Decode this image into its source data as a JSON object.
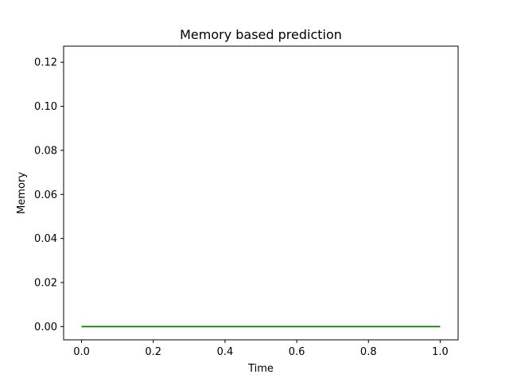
{
  "chart_data": {
    "type": "line",
    "title": "Memory based prediction",
    "xlabel": "Time",
    "ylabel": "Memory",
    "xlim": [
      -0.05,
      1.05
    ],
    "ylim": [
      -0.006,
      0.1273
    ],
    "x_ticks": [
      0.0,
      0.2,
      0.4,
      0.6,
      0.8,
      1.0
    ],
    "x_tick_labels": [
      "0.0",
      "0.2",
      "0.4",
      "0.6",
      "0.8",
      "1.0"
    ],
    "y_ticks": [
      0.0,
      0.02,
      0.04,
      0.06,
      0.08,
      0.1,
      0.12
    ],
    "y_tick_labels": [
      "0.00",
      "0.02",
      "0.04",
      "0.06",
      "0.08",
      "0.10",
      "0.12"
    ],
    "grid": false,
    "legend": "none",
    "series": [
      {
        "color": "#008000",
        "x": [
          0.0,
          1.0
        ],
        "y": [
          0.0,
          0.0
        ]
      }
    ]
  }
}
